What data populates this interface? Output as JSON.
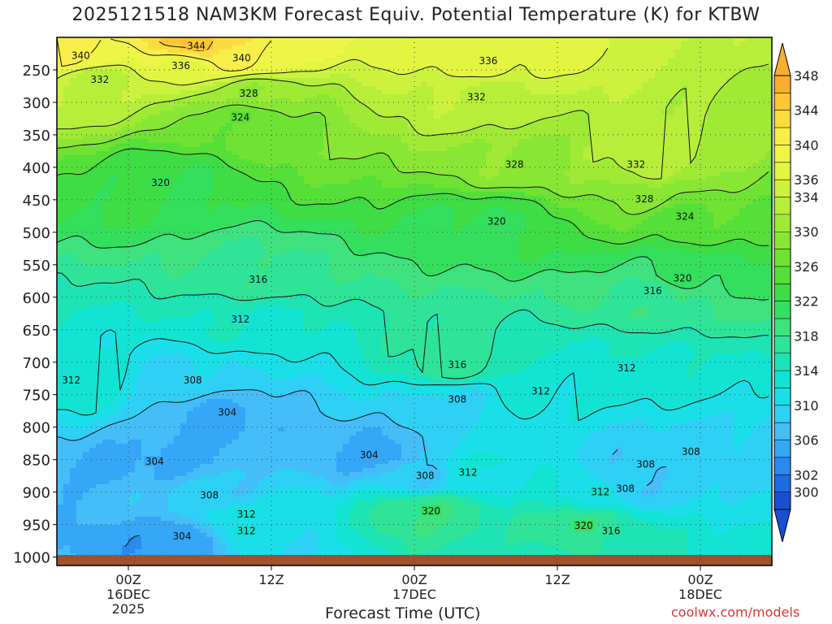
{
  "title": "2025121518 NAM3KM Forecast Equiv. Potential Temperature (K) for KTBW",
  "credit": "coolwx.com/models",
  "chart_data": {
    "type": "heatmap",
    "title": "2025121518 NAM3KM Forecast Equiv. Potential Temperature (K) for KTBW",
    "xlabel": "Forecast Time (UTC)",
    "ylabel": "",
    "x_ticks": [
      {
        "hour": 6,
        "lines": [
          "00Z",
          "16DEC",
          "2025"
        ]
      },
      {
        "hour": 18,
        "lines": [
          "12Z"
        ]
      },
      {
        "hour": 30,
        "lines": [
          "00Z",
          "17DEC"
        ]
      },
      {
        "hour": 42,
        "lines": [
          "12Z"
        ]
      },
      {
        "hour": 54,
        "lines": [
          "00Z",
          "18DEC"
        ]
      }
    ],
    "xlim": [
      0,
      60
    ],
    "y_ticks": [
      250,
      300,
      350,
      400,
      450,
      500,
      550,
      600,
      650,
      700,
      750,
      800,
      850,
      900,
      950,
      1000
    ],
    "ylim": [
      200,
      1013
    ],
    "colorbar": {
      "levels": [
        298,
        300,
        302,
        304,
        306,
        308,
        310,
        312,
        314,
        316,
        318,
        320,
        322,
        324,
        326,
        328,
        330,
        332,
        334,
        336,
        338,
        340,
        342,
        344,
        346,
        348,
        350
      ],
      "labels": [
        300,
        302,
        306,
        310,
        314,
        318,
        322,
        326,
        330,
        334,
        336,
        340,
        344,
        348
      ],
      "colors": [
        "#1a4fd1",
        "#1e6be0",
        "#2a8af0",
        "#36a6f6",
        "#45bdf8",
        "#2fd0f5",
        "#1adfe8",
        "#12e3d2",
        "#1ee3b4",
        "#2fe399",
        "#3fe27e",
        "#35df5e",
        "#3edc45",
        "#55df38",
        "#6fe233",
        "#8ae634",
        "#a0ea36",
        "#b7ee3a",
        "#cdf23e",
        "#e1f541",
        "#eff547",
        "#f8ee49",
        "#fbdc3f",
        "#fbc635",
        "#f8ae2e"
      ]
    },
    "contour_interval": 4,
    "contour_labels": [
      {
        "hour": 2.0,
        "p": 228,
        "v": 340
      },
      {
        "hour": 11.7,
        "p": 213,
        "v": 344
      },
      {
        "hour": 15.5,
        "p": 232,
        "v": 340
      },
      {
        "hour": 10.4,
        "p": 244,
        "v": 336
      },
      {
        "hour": 36.2,
        "p": 236,
        "v": 336
      },
      {
        "hour": 3.6,
        "p": 265,
        "v": 332
      },
      {
        "hour": 35.2,
        "p": 292,
        "v": 332
      },
      {
        "hour": 16.1,
        "p": 286,
        "v": 328
      },
      {
        "hour": 15.4,
        "p": 323,
        "v": 324
      },
      {
        "hour": 8.7,
        "p": 424,
        "v": 320
      },
      {
        "hour": 38.4,
        "p": 396,
        "v": 328
      },
      {
        "hour": 48.6,
        "p": 396,
        "v": 332
      },
      {
        "hour": 49.3,
        "p": 449,
        "v": 328
      },
      {
        "hour": 52.7,
        "p": 476,
        "v": 324
      },
      {
        "hour": 36.9,
        "p": 483,
        "v": 320
      },
      {
        "hour": 52.5,
        "p": 571,
        "v": 320
      },
      {
        "hour": 16.9,
        "p": 573,
        "v": 316
      },
      {
        "hour": 50.0,
        "p": 590,
        "v": 316
      },
      {
        "hour": 15.4,
        "p": 634,
        "v": 312
      },
      {
        "hour": 33.6,
        "p": 704,
        "v": 316
      },
      {
        "hour": 47.8,
        "p": 709,
        "v": 312
      },
      {
        "hour": 1.2,
        "p": 728,
        "v": 312
      },
      {
        "hour": 11.4,
        "p": 728,
        "v": 308
      },
      {
        "hour": 40.6,
        "p": 745,
        "v": 312
      },
      {
        "hour": 33.6,
        "p": 757,
        "v": 308
      },
      {
        "hour": 14.3,
        "p": 777,
        "v": 304
      },
      {
        "hour": 26.2,
        "p": 843,
        "v": 304
      },
      {
        "hour": 8.2,
        "p": 853,
        "v": 304
      },
      {
        "hour": 30.9,
        "p": 875,
        "v": 308
      },
      {
        "hour": 34.5,
        "p": 870,
        "v": 312
      },
      {
        "hour": 49.4,
        "p": 857,
        "v": 308
      },
      {
        "hour": 53.2,
        "p": 838,
        "v": 308
      },
      {
        "hour": 12.8,
        "p": 905,
        "v": 308
      },
      {
        "hour": 15.9,
        "p": 934,
        "v": 312
      },
      {
        "hour": 15.9,
        "p": 960,
        "v": 312
      },
      {
        "hour": 31.4,
        "p": 929,
        "v": 320
      },
      {
        "hour": 45.6,
        "p": 900,
        "v": 312
      },
      {
        "hour": 47.7,
        "p": 895,
        "v": 308
      },
      {
        "hour": 44.2,
        "p": 952,
        "v": 320
      },
      {
        "hour": 46.5,
        "p": 960,
        "v": 316
      },
      {
        "hour": 10.5,
        "p": 968,
        "v": 304
      }
    ]
  }
}
